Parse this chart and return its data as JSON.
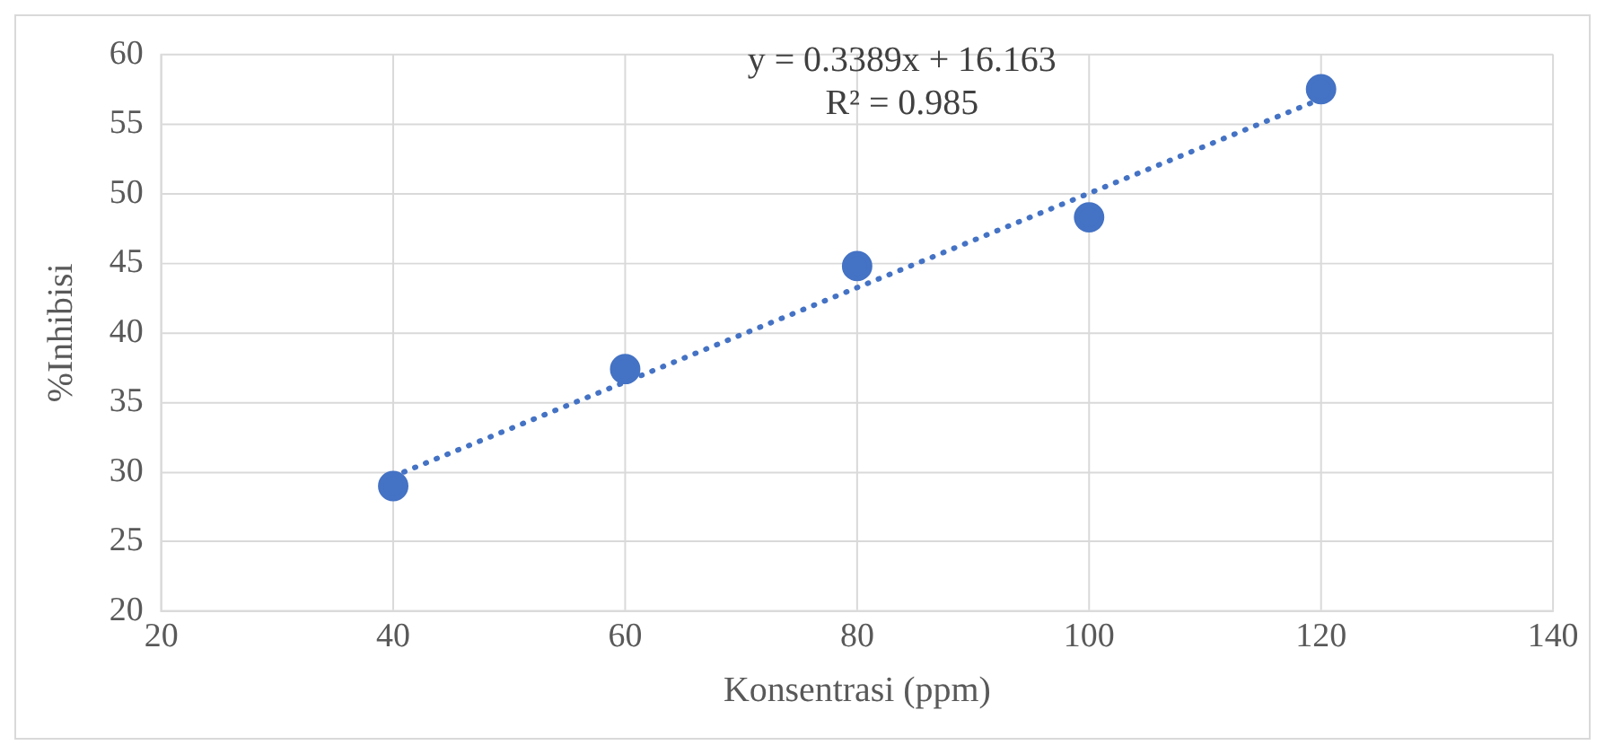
{
  "chart_data": {
    "type": "scatter",
    "xlabel": "Konsentrasi (ppm)",
    "ylabel": "%Inhibisi",
    "x": [
      40,
      60,
      80,
      100,
      120
    ],
    "series": [
      {
        "type": "scatter",
        "color": "#4472c4",
        "values": [
          29.0,
          37.4,
          44.8,
          48.3,
          57.5
        ],
        "marker": "circle"
      },
      {
        "type": "line",
        "color": "#4472c4",
        "x": [
          40,
          120
        ],
        "values": [
          29.7,
          56.8
        ],
        "line_style": "dotted",
        "marker": "none"
      }
    ],
    "xlim": [
      20,
      140
    ],
    "xticks": [
      20,
      40,
      60,
      80,
      100,
      120,
      140
    ],
    "ylim": [
      20,
      60
    ],
    "yticks": [
      20,
      25,
      30,
      35,
      40,
      45,
      50,
      55,
      60
    ],
    "grid": true,
    "legend": false,
    "annotations": [
      "y = 0.3389x + 16.163",
      "R² = 0.985"
    ]
  }
}
